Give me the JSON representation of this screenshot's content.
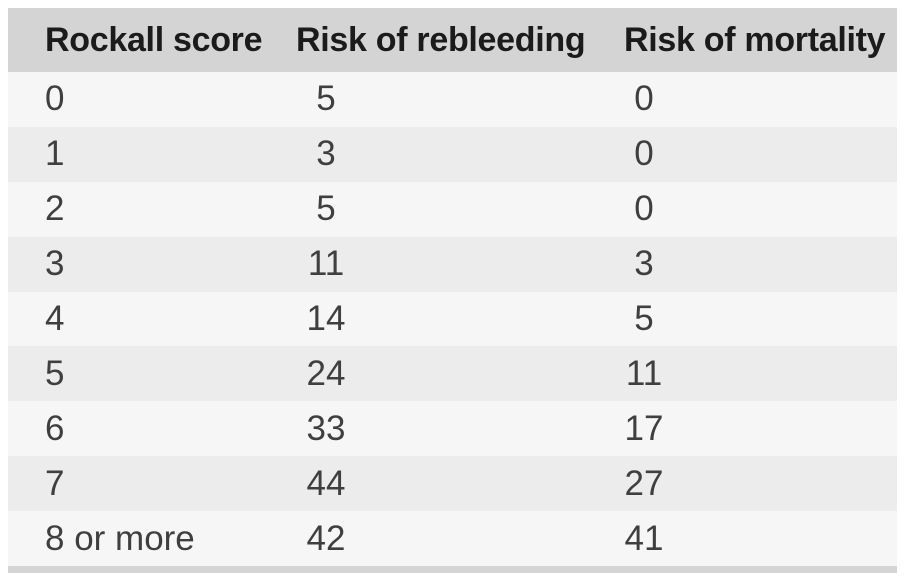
{
  "chart_data": {
    "type": "table",
    "columns": [
      "Rockall score",
      "Risk of rebleeding",
      "Risk of mortality"
    ],
    "rows": [
      [
        "0",
        5,
        0
      ],
      [
        "1",
        3,
        0
      ],
      [
        "2",
        5,
        0
      ],
      [
        "3",
        11,
        3
      ],
      [
        "4",
        14,
        5
      ],
      [
        "5",
        24,
        11
      ],
      [
        "6",
        33,
        17
      ],
      [
        "7",
        44,
        27
      ],
      [
        "8 or more",
        42,
        41
      ]
    ],
    "title": "",
    "layout": {
      "row_striping": true,
      "header_position": "top"
    }
  },
  "colors": {
    "header_background": "#d4d4d4",
    "row_light": "#f6f6f6",
    "row_dark": "#ececec",
    "header_text": "#1b1b1b",
    "body_text": "#3f3f3f",
    "bottom_border": "#d4d4d4",
    "page_background": "#ffffff"
  }
}
